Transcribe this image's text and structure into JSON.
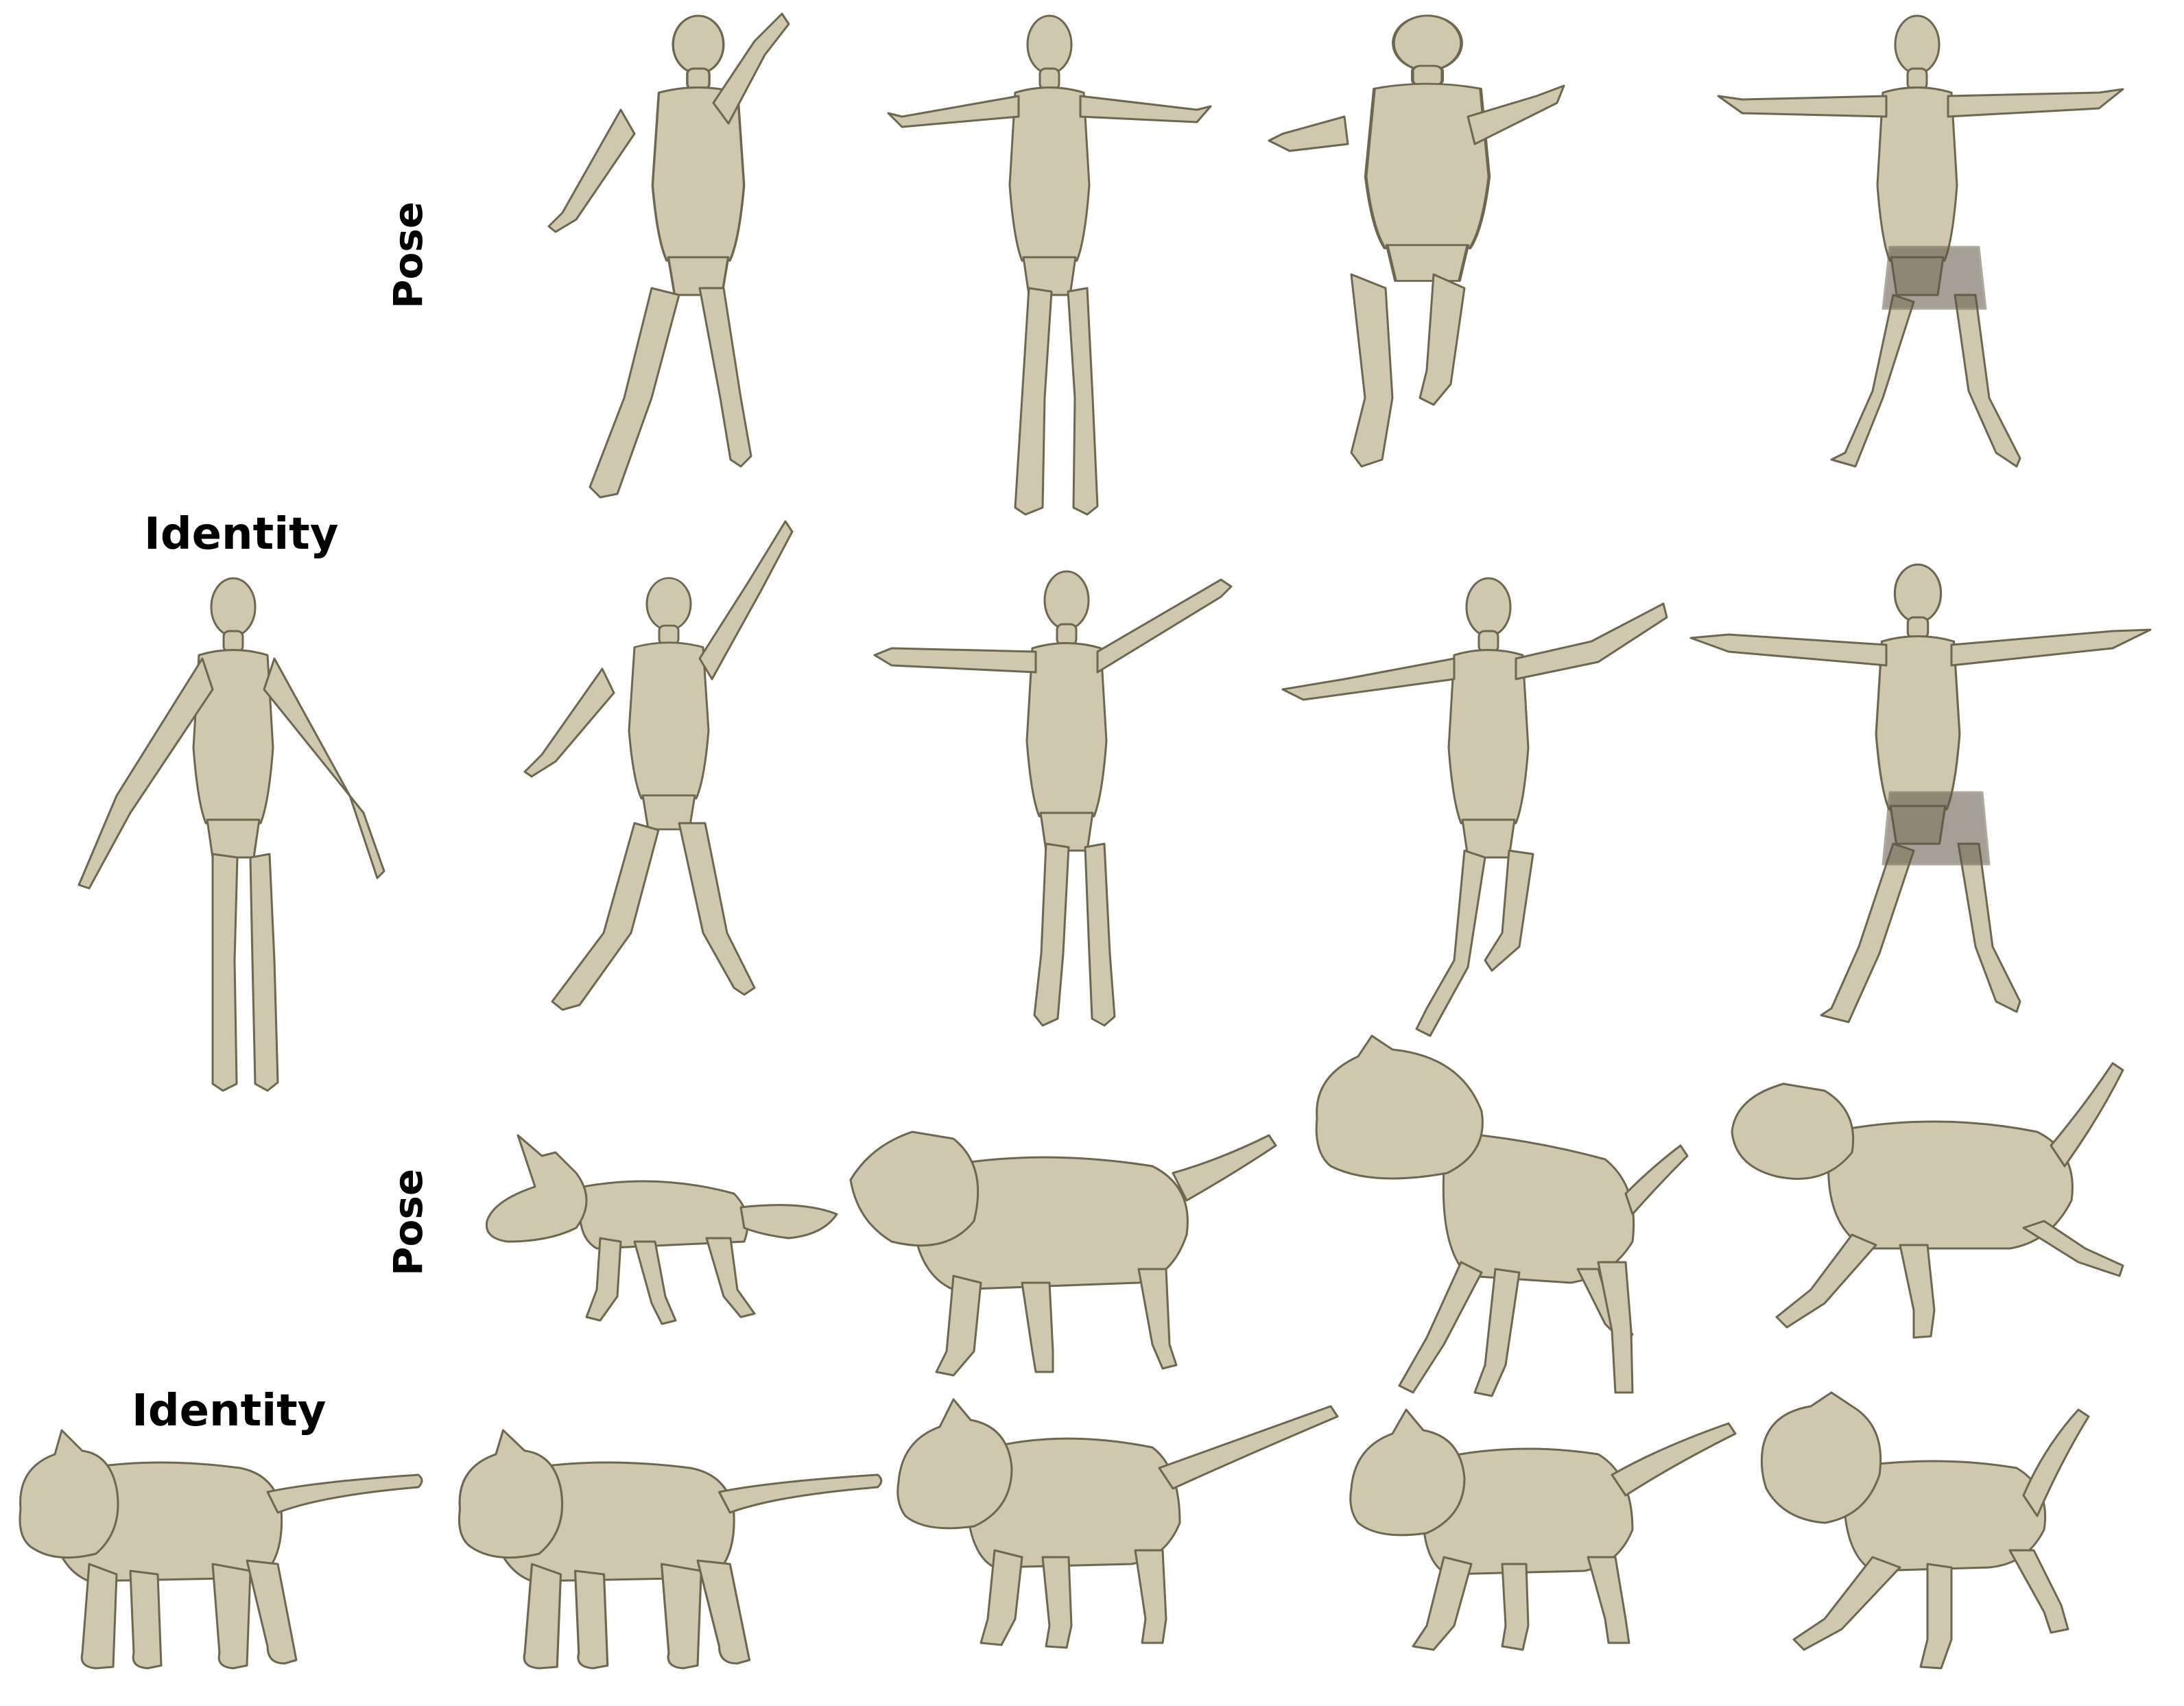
{
  "labels": {
    "human_pose": "Pose",
    "human_identity": "Identity",
    "animal_pose": "Pose",
    "animal_identity": "Identity"
  },
  "colors": {
    "mesh_fill": "#cfc7ae",
    "mesh_stroke": "#6d6650",
    "mesh_dark": "#5a5444",
    "background": "#ffffff"
  },
  "figures": {
    "human_pose_row": [
      "raised-right-arm",
      "t-pose",
      "kneeling-arms-out",
      "t-pose-wide-stance"
    ],
    "human_output_row": [
      "raised-right-arm",
      "t-pose",
      "kneeling-arms-out",
      "t-pose-wide-stance"
    ],
    "human_identity": "a-pose",
    "animal_pose_row": [
      "fox",
      "wolf",
      "horse",
      "lion-running"
    ],
    "animal_output_row": [
      "cat",
      "cat",
      "cat",
      "cat"
    ],
    "animal_identity": "cat"
  }
}
